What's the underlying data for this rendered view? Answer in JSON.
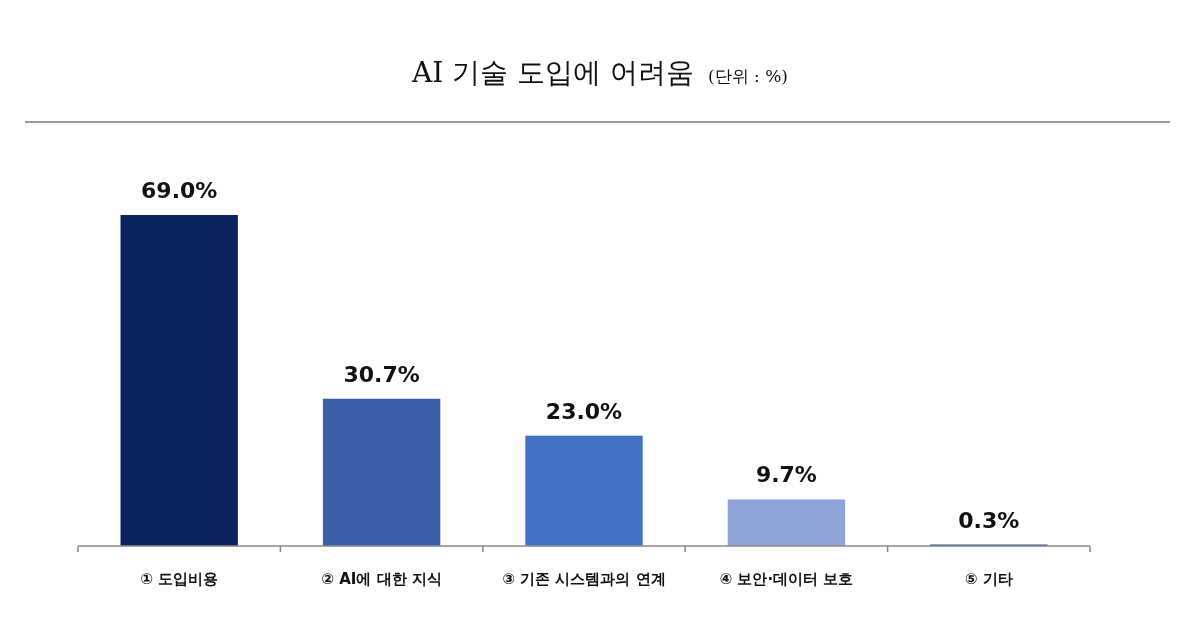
{
  "chart_data": {
    "type": "bar",
    "title": "AI 기술 도입에 어려움",
    "subtitle": "(단위 : %)",
    "categories": [
      "① 도입비용",
      "② AI에 대한 지식",
      "③ 기존 시스템과의 연계",
      "④ 보안·데이터 보호",
      "⑤ 기타"
    ],
    "values": [
      69.0,
      30.7,
      23.0,
      9.7,
      0.3
    ],
    "colors": [
      "#0b2461",
      "#3a5ea8",
      "#4472c4",
      "#8ea3d6",
      "#1f3a7a"
    ],
    "value_labels": [
      "69.0%",
      "30.7%",
      "23.0%",
      "9.7%",
      "0.3%"
    ]
  }
}
